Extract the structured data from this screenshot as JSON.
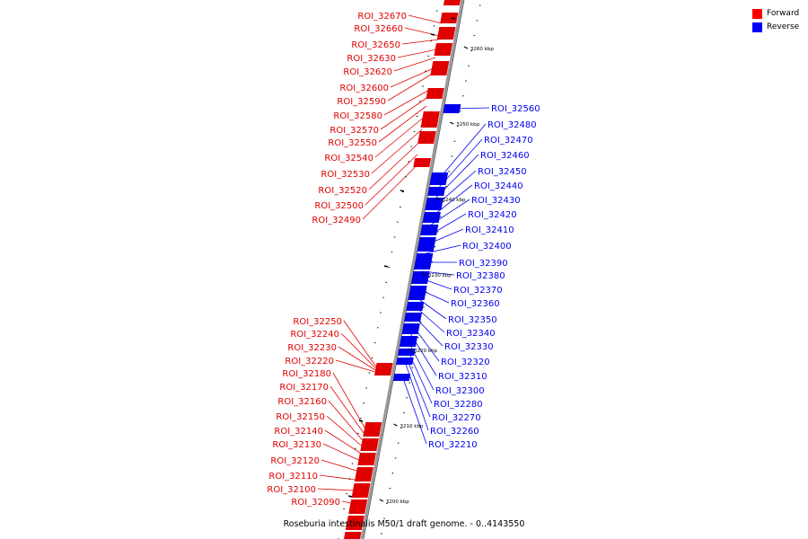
{
  "caption": "Roseburia intestinalis M50/1 draft genome. - 0..4143550",
  "legend": [
    {
      "label": "Forward",
      "color": "#ff0000"
    },
    {
      "label": "Reverse",
      "color": "#0000ff"
    }
  ],
  "colors": {
    "forward": "#e00000",
    "reverse": "#0000ee",
    "axis": "#888888"
  },
  "scale_labels": [
    "3260 kbp",
    "3250 kbp",
    "3240 kbp",
    "3230 kbp",
    "3220 kbp",
    "3210 kbp",
    "3200 kbp"
  ],
  "forward_labels": [
    "ROI_32670",
    "ROI_32660",
    "ROI_32650",
    "ROI_32630",
    "ROI_32620",
    "ROI_32600",
    "ROI_32590",
    "ROI_32580",
    "ROI_32570",
    "ROI_32550",
    "ROI_32540",
    "ROI_32530",
    "ROI_32520",
    "ROI_32500",
    "ROI_32490"
  ],
  "reverse_labels": [
    "ROI_32560",
    "ROI_32480",
    "ROI_32470",
    "ROI_32460",
    "ROI_32450",
    "ROI_32440",
    "ROI_32430",
    "ROI_32420",
    "ROI_32410",
    "ROI_32400",
    "ROI_32390",
    "ROI_32380",
    "ROI_32370",
    "ROI_32360",
    "ROI_32350",
    "ROI_32340",
    "ROI_32330",
    "ROI_32320",
    "ROI_32310",
    "ROI_32300",
    "ROI_32280",
    "ROI_32270",
    "ROI_32260",
    "ROI_32210"
  ],
  "forward_labels_lower": [
    "ROI_32250",
    "ROI_32240",
    "ROI_32230",
    "ROI_32220",
    "ROI_32180",
    "ROI_32170",
    "ROI_32160",
    "ROI_32150",
    "ROI_32140",
    "ROI_32130",
    "ROI_32120",
    "ROI_32110",
    "ROI_32100",
    "ROI_32090"
  ]
}
